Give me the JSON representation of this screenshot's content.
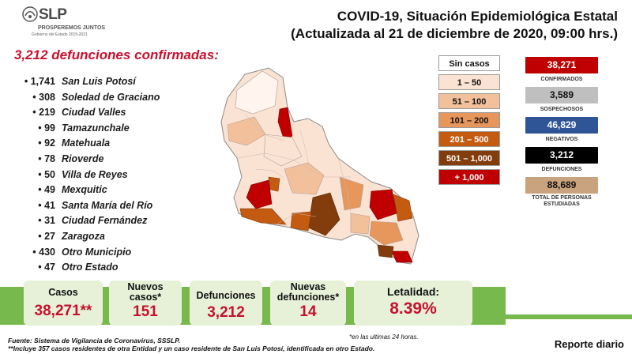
{
  "header": {
    "logo_name": "SLP",
    "logo_slogan": "PROSPEREMOS JUNTOS",
    "logo_gov": "Gobierno del Estado 2015-2021",
    "title_line1": "COVID-19, Situación Epidemiológica Estatal",
    "title_line2": "(Actualizada al 21 de diciembre de 2020, 09:00 hrs.)"
  },
  "headline": "3,212 defunciones confirmadas:",
  "municipalities": [
    {
      "count": "1,741",
      "name": "San Luis Potosí"
    },
    {
      "count": "308",
      "name": "Soledad de Graciano"
    },
    {
      "count": "219",
      "name": "Ciudad Valles"
    },
    {
      "count": "99",
      "name": "Tamazunchale"
    },
    {
      "count": "92",
      "name": "Matehuala"
    },
    {
      "count": "78",
      "name": "Rioverde"
    },
    {
      "count": "50",
      "name": "Villa de Reyes"
    },
    {
      "count": "49",
      "name": "Mexquitic"
    },
    {
      "count": "41",
      "name": "Santa María del Río"
    },
    {
      "count": "31",
      "name": "Ciudad Fernández"
    },
    {
      "count": "27",
      "name": "Zaragoza"
    },
    {
      "count": "430",
      "name": "Otro Municipio"
    },
    {
      "count": "47",
      "name": "Otro Estado"
    }
  ],
  "legend": [
    {
      "label": "Sin casos",
      "color": "#ffffff",
      "text_color": "#111111"
    },
    {
      "label": "1 – 50",
      "color": "#fbe3d3",
      "text_color": "#111111"
    },
    {
      "label": "51 – 100",
      "color": "#f3c09c",
      "text_color": "#111111"
    },
    {
      "label": "101 – 200",
      "color": "#e7965c",
      "text_color": "#111111"
    },
    {
      "label": "201 – 500",
      "color": "#c55a11",
      "text_color": "#ffffff"
    },
    {
      "label": "501 – 1,000",
      "color": "#833c0b",
      "text_color": "#ffffff"
    },
    {
      "label": "+ 1,000",
      "color": "#c00000",
      "text_color": "#ffffff"
    }
  ],
  "stats": [
    {
      "value": "38,271",
      "label": "CONFIRMADOS",
      "bg": "#c00000",
      "fg": "#ffffff"
    },
    {
      "value": "3,589",
      "label": "SOSPECHOSOS",
      "bg": "#bfbfbf",
      "fg": "#111111"
    },
    {
      "value": "46,829",
      "label": "NEGATIVOS",
      "bg": "#2f5597",
      "fg": "#ffffff"
    },
    {
      "value": "3,212",
      "label": "DEFUNCIONES",
      "bg": "#000000",
      "fg": "#ffffff"
    },
    {
      "value": "88,689",
      "label": "TOTAL DE PERSONAS ESTUDIADAS",
      "bg": "#c9a27e",
      "fg": "#111111"
    }
  ],
  "kpis": {
    "casos_label": "Casos",
    "casos_value": "38,271**",
    "nuevos_casos_label": "Nuevos casos*",
    "nuevos_casos_value": "151",
    "defunciones_label": "Defunciones",
    "defunciones_value": "3,212",
    "nuevas_def_label": "Nuevas defunciones*",
    "nuevas_def_value": "14",
    "letalidad_label": "Letalidad:",
    "letalidad_value": "8.39%"
  },
  "footer": {
    "note_24h": "*en las ultimas 24 horas.",
    "source": "Fuente: Sistema de Vigilancia de Coronavirus, SSSLP.",
    "note_cases": "**Incluye 357 casos residentes de otra Entidad y un caso residente de San Luis Potosí, identificada en otro Estado.",
    "reporte": "Reporte diario"
  }
}
